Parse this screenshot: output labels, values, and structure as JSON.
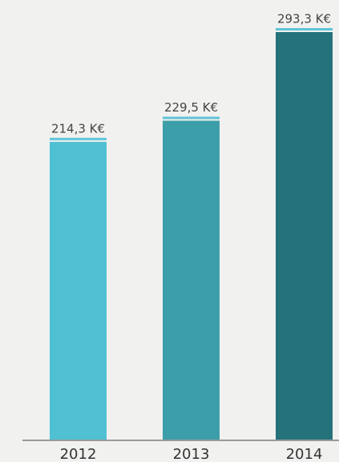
{
  "chart_data": {
    "type": "bar",
    "categories": [
      "2012",
      "2013",
      "2014"
    ],
    "values": [
      214.3,
      229.5,
      293.3
    ],
    "value_labels": [
      "214,3 K€",
      "229,5 K€",
      "293,3 K€"
    ],
    "colors": [
      "#4fc1d3",
      "#3b9ea8",
      "#26727b"
    ]
  }
}
